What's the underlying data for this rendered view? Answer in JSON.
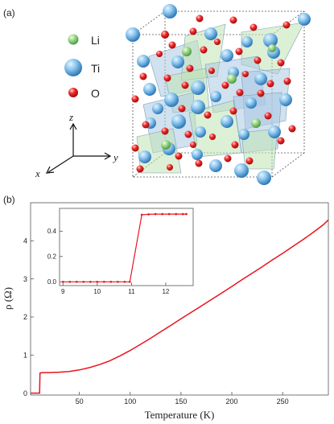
{
  "panel_a": {
    "label": "(a)",
    "legend": [
      {
        "label": "Li",
        "color": "#8fce7a"
      },
      {
        "label": "Ti",
        "color": "#5aa9dc"
      },
      {
        "label": "O",
        "color": "#e02020"
      }
    ],
    "axes": {
      "z": "z",
      "y": "y",
      "x": "x"
    }
  },
  "panel_b": {
    "label": "(b)"
  },
  "chart_data": [
    {
      "type": "line",
      "role": "main",
      "xlabel": "Temperature (K)",
      "ylabel": "ρ (Ω)",
      "xlim": [
        2,
        295
      ],
      "ylim": [
        -0.05,
        5.0
      ],
      "x_ticks": [
        50,
        100,
        150,
        200,
        250
      ],
      "y_ticks": [
        0,
        1,
        2,
        3,
        4
      ],
      "line_color": "#e8141c",
      "x": [
        2,
        5,
        9,
        10.9,
        11.3,
        13,
        20,
        30,
        40,
        50,
        60,
        70,
        80,
        90,
        100,
        110,
        120,
        130,
        140,
        150,
        160,
        170,
        180,
        190,
        200,
        210,
        220,
        230,
        240,
        250,
        260,
        270,
        280,
        290,
        295
      ],
      "y": [
        0,
        0,
        0,
        0,
        0.53,
        0.535,
        0.54,
        0.55,
        0.57,
        0.61,
        0.67,
        0.75,
        0.85,
        0.98,
        1.12,
        1.28,
        1.44,
        1.61,
        1.78,
        1.95,
        2.12,
        2.29,
        2.46,
        2.63,
        2.8,
        2.98,
        3.15,
        3.32,
        3.5,
        3.67,
        3.85,
        4.03,
        4.22,
        4.42,
        4.55
      ]
    },
    {
      "type": "line",
      "role": "inset",
      "xlim": [
        8.9,
        12.8
      ],
      "ylim": [
        -0.03,
        0.58
      ],
      "x_ticks": [
        9,
        10,
        11,
        12
      ],
      "y_ticks": [
        0.0,
        0.2,
        0.4
      ],
      "y_tick_labels": [
        "0.0",
        "0.2",
        "0.4"
      ],
      "line_color": "#e8141c",
      "x": [
        9.0,
        9.2,
        9.4,
        9.6,
        9.8,
        10.0,
        10.2,
        10.4,
        10.6,
        10.8,
        10.95,
        11.3,
        11.5,
        11.7,
        11.9,
        12.1,
        12.3,
        12.5,
        12.6
      ],
      "y": [
        0,
        0,
        0,
        0,
        0,
        0,
        0,
        0,
        0,
        0,
        0,
        0.53,
        0.533,
        0.535,
        0.535,
        0.535,
        0.535,
        0.535,
        0.535
      ]
    }
  ]
}
